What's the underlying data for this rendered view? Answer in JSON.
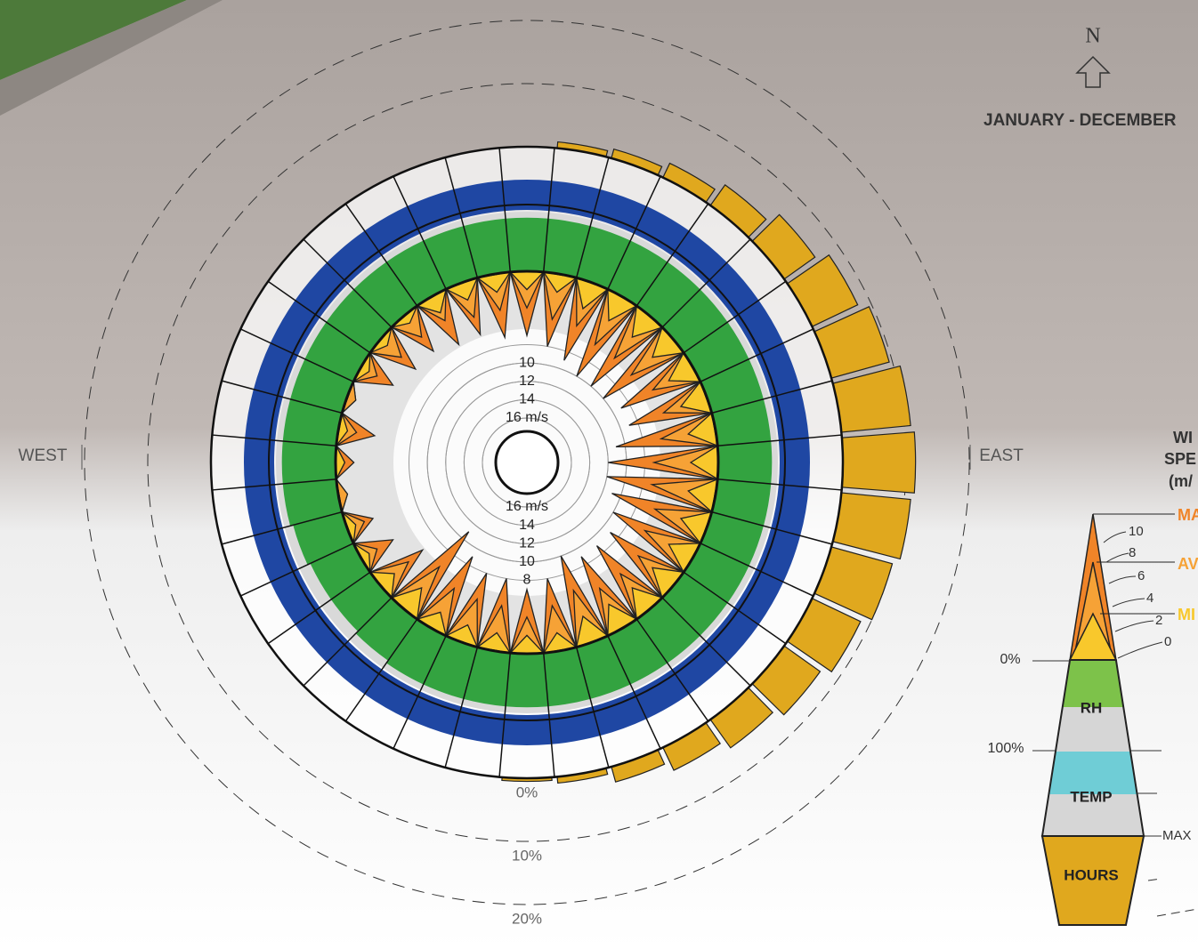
{
  "chart_data": {
    "type": "windrose",
    "title": "JANUARY - DECEMBER",
    "north": "N",
    "west": "WEST",
    "east": "EAST",
    "max_speed": [
      7,
      8,
      9,
      10,
      10,
      10,
      9,
      9,
      11,
      12,
      12,
      11,
      10,
      9,
      9,
      9,
      10,
      8,
      7,
      8,
      8,
      9,
      11,
      6,
      4,
      3,
      1,
      2,
      4,
      1,
      4,
      5,
      5,
      6,
      6,
      7
    ],
    "avg_speed": [
      4,
      5,
      5,
      6,
      6,
      6,
      5,
      5,
      6,
      7,
      7,
      6,
      6,
      5,
      5,
      5,
      6,
      5,
      4,
      5,
      5,
      5,
      6,
      4,
      2,
      2,
      1,
      1,
      2,
      1,
      2,
      3,
      3,
      3,
      4,
      4
    ],
    "min_speed": [
      2,
      2,
      3,
      3,
      3,
      3,
      3,
      3,
      3,
      3,
      3,
      3,
      3,
      3,
      3,
      3,
      3,
      2,
      2,
      2,
      2,
      2,
      3,
      2,
      1,
      1,
      0,
      1,
      1,
      0,
      1,
      1,
      1,
      2,
      2,
      2
    ],
    "rh": [
      90,
      90,
      90,
      90,
      90,
      90,
      90,
      90,
      90,
      90,
      90,
      90,
      90,
      90,
      90,
      90,
      90,
      90,
      90,
      90,
      90,
      90,
      85,
      80,
      80,
      85,
      90,
      90,
      90,
      90,
      90,
      90,
      90,
      90,
      90,
      90
    ],
    "temp": [
      100,
      100,
      100,
      100,
      100,
      100,
      100,
      100,
      100,
      100,
      100,
      100,
      100,
      100,
      100,
      100,
      100,
      100,
      100,
      100,
      100,
      100,
      100,
      100,
      100,
      100,
      100,
      100,
      100,
      100,
      100,
      100,
      100,
      100,
      100,
      100
    ],
    "hours": [
      0,
      1,
      1.5,
      2.5,
      4,
      6,
      8,
      9.5,
      11,
      11.5,
      11,
      10,
      8.5,
      7,
      5.5,
      4,
      2.5,
      1,
      0.5,
      0,
      0,
      0,
      0,
      0,
      0,
      0,
      0,
      0,
      0,
      0,
      0,
      0,
      0,
      0,
      0,
      0
    ],
    "speed_lim": [
      0,
      16
    ],
    "speed_ticks_top": [
      10,
      12,
      14,
      {
        "value": 16,
        "label": "16 m/s"
      }
    ],
    "speed_ticks_bottom": [
      {
        "value": 16,
        "label": "16 m/s"
      },
      14,
      12,
      10,
      8
    ],
    "rh_lim": [
      0,
      100
    ],
    "temp_lim": [
      0,
      100
    ],
    "hours_lim": [
      0,
      20
    ],
    "hours_ticks": [
      {
        "value": 0,
        "label": "0%"
      },
      {
        "value": 10,
        "label": "10%"
      },
      {
        "value": 20,
        "label": "20%"
      }
    ],
    "colors": {
      "max": "#f08428",
      "avg": "#f6a236",
      "min": "#f8c82c",
      "rh": "#33a340",
      "temp": "#1f47a3",
      "hours": "#e0a81e"
    },
    "legend": {
      "title": [
        "WI",
        "SPE",
        "(m/"
      ],
      "max": "MA",
      "avg": "AV",
      "min": "MI",
      "speed_scale": [
        10,
        8,
        6,
        4,
        2,
        0
      ],
      "rh_min": "0%",
      "rh_max": "100%",
      "rh": "RH",
      "temp": "TEMP",
      "temp_max": "MAX",
      "hours": "HOURS"
    }
  }
}
